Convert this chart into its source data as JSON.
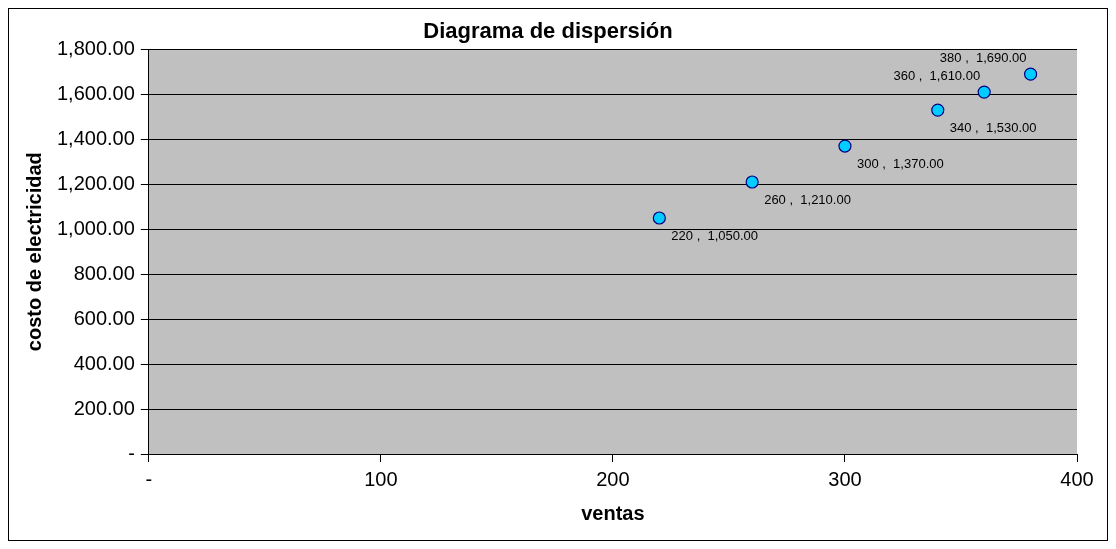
{
  "chart_data": {
    "type": "scatter",
    "title": "Diagrama de dispersión",
    "xlabel": "ventas",
    "ylabel": "costo de electricidad",
    "x": [
      220,
      260,
      300,
      340,
      360,
      380
    ],
    "values": [
      1050,
      1210,
      1370,
      1530,
      1610,
      1690
    ],
    "value_labels": [
      "220 ,  1,050.00",
      "260 ,  1,210.00",
      "300 ,  1,370.00",
      "340 ,  1,530.00",
      "360 ,  1,610.00",
      "380 ,  1,690.00"
    ],
    "color": "#00ccff",
    "marker": "circle",
    "grid": "y",
    "legend": false,
    "xlim": [
      0,
      400
    ],
    "xticks": [
      {
        "value": 0,
        "label": "-"
      },
      100,
      200,
      300,
      400
    ],
    "ylim": [
      0,
      1800
    ],
    "yticks": [
      {
        "value": 0,
        "label": "-"
      },
      {
        "value": 200,
        "label": "200.00"
      },
      {
        "value": 400,
        "label": "400.00"
      },
      {
        "value": 600,
        "label": "600.00"
      },
      {
        "value": 800,
        "label": "800.00"
      },
      {
        "value": 1000,
        "label": "1,000.00"
      },
      {
        "value": 1200,
        "label": "1,200.00"
      },
      {
        "value": 1400,
        "label": "1,400.00"
      },
      {
        "value": 1600,
        "label": "1,600.00"
      },
      {
        "value": 1800,
        "label": "1,800.00"
      }
    ]
  }
}
